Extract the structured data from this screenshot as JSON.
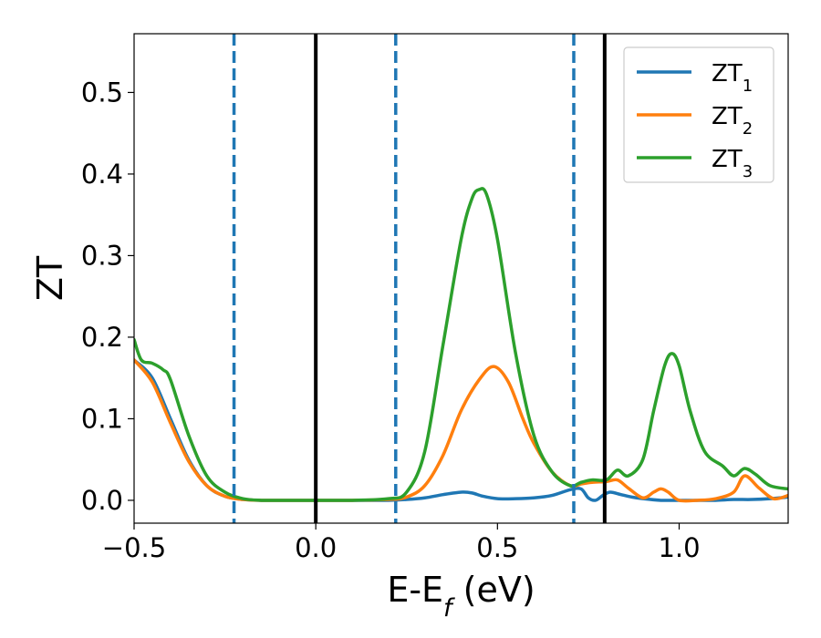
{
  "chart_data": {
    "type": "line",
    "xlabel": "E-E",
    "xlabel_sub": "f",
    "xlabel_unit": "(eV)",
    "ylabel": "ZT",
    "xlim": [
      -0.5,
      1.3
    ],
    "ylim": [
      -0.028,
      0.572
    ],
    "xticks": [
      -0.5,
      0.0,
      0.5,
      1.0
    ],
    "xtick_labels": [
      "−0.5",
      "0.0",
      "0.5",
      "1.0"
    ],
    "yticks": [
      0.0,
      0.1,
      0.2,
      0.3,
      0.4,
      0.5
    ],
    "ytick_labels": [
      "0.0",
      "0.1",
      "0.2",
      "0.3",
      "0.4",
      "0.5"
    ],
    "grid": false,
    "legend_position": "top-right",
    "vertical_lines": [
      {
        "x": -0.225,
        "style": "dashed",
        "color": "#1f77b4"
      },
      {
        "x": 0.0,
        "style": "solid",
        "color": "#000000"
      },
      {
        "x": 0.22,
        "style": "dashed",
        "color": "#1f77b4"
      },
      {
        "x": 0.71,
        "style": "dashed",
        "color": "#1f77b4"
      },
      {
        "x": 0.795,
        "style": "solid",
        "color": "#000000"
      }
    ],
    "series": [
      {
        "name": "ZT",
        "name_sub": "1",
        "color": "#1f77b4",
        "x": [
          -0.5,
          -0.45,
          -0.4,
          -0.35,
          -0.3,
          -0.25,
          -0.2,
          -0.15,
          -0.1,
          0.0,
          0.1,
          0.2,
          0.25,
          0.3,
          0.35,
          0.4,
          0.43,
          0.46,
          0.5,
          0.55,
          0.6,
          0.65,
          0.7,
          0.73,
          0.75,
          0.77,
          0.79,
          0.81,
          0.84,
          0.87,
          0.9,
          0.95,
          1.0,
          1.05,
          1.1,
          1.15,
          1.2,
          1.25,
          1.3
        ],
        "y": [
          0.172,
          0.15,
          0.1,
          0.05,
          0.018,
          0.005,
          0.001,
          0.0,
          0.0,
          0.0,
          0.0,
          0.0,
          0.001,
          0.003,
          0.007,
          0.01,
          0.009,
          0.005,
          0.002,
          0.002,
          0.003,
          0.006,
          0.013,
          0.014,
          0.003,
          0.0,
          0.006,
          0.01,
          0.007,
          0.004,
          0.002,
          0.0,
          0.0,
          0.0,
          0.0,
          0.001,
          0.001,
          0.002,
          0.004
        ]
      },
      {
        "name": "ZT",
        "name_sub": "2",
        "color": "#ff7f0e",
        "x": [
          -0.5,
          -0.45,
          -0.4,
          -0.35,
          -0.3,
          -0.25,
          -0.2,
          -0.15,
          -0.1,
          0.0,
          0.1,
          0.2,
          0.25,
          0.3,
          0.35,
          0.4,
          0.45,
          0.49,
          0.53,
          0.57,
          0.6,
          0.65,
          0.7,
          0.73,
          0.76,
          0.8,
          0.83,
          0.86,
          0.9,
          0.93,
          0.95,
          0.97,
          1.0,
          1.05,
          1.1,
          1.15,
          1.18,
          1.22,
          1.26,
          1.3
        ],
        "y": [
          0.172,
          0.145,
          0.095,
          0.048,
          0.018,
          0.005,
          0.001,
          0.0,
          0.0,
          0.0,
          0.0,
          0.001,
          0.004,
          0.018,
          0.055,
          0.11,
          0.148,
          0.164,
          0.145,
          0.1,
          0.07,
          0.035,
          0.018,
          0.02,
          0.022,
          0.023,
          0.025,
          0.015,
          0.003,
          0.01,
          0.014,
          0.01,
          0.0,
          0.0,
          0.002,
          0.01,
          0.03,
          0.015,
          0.002,
          0.006
        ]
      },
      {
        "name": "ZT",
        "name_sub": "3",
        "color": "#2ca02c",
        "x": [
          -0.5,
          -0.48,
          -0.45,
          -0.42,
          -0.4,
          -0.35,
          -0.3,
          -0.25,
          -0.2,
          -0.15,
          -0.1,
          0.0,
          0.1,
          0.2,
          0.25,
          0.3,
          0.35,
          0.4,
          0.43,
          0.45,
          0.47,
          0.5,
          0.55,
          0.6,
          0.65,
          0.7,
          0.73,
          0.76,
          0.8,
          0.83,
          0.86,
          0.9,
          0.93,
          0.96,
          0.98,
          1.0,
          1.03,
          1.07,
          1.12,
          1.15,
          1.18,
          1.21,
          1.25,
          1.3
        ],
        "y": [
          0.197,
          0.172,
          0.168,
          0.16,
          0.148,
          0.08,
          0.03,
          0.01,
          0.002,
          0.0,
          0.0,
          0.0,
          0.0,
          0.002,
          0.01,
          0.06,
          0.19,
          0.32,
          0.37,
          0.381,
          0.375,
          0.32,
          0.18,
          0.08,
          0.035,
          0.018,
          0.022,
          0.025,
          0.025,
          0.037,
          0.03,
          0.05,
          0.11,
          0.165,
          0.18,
          0.165,
          0.11,
          0.06,
          0.042,
          0.03,
          0.039,
          0.032,
          0.018,
          0.014
        ]
      }
    ]
  }
}
